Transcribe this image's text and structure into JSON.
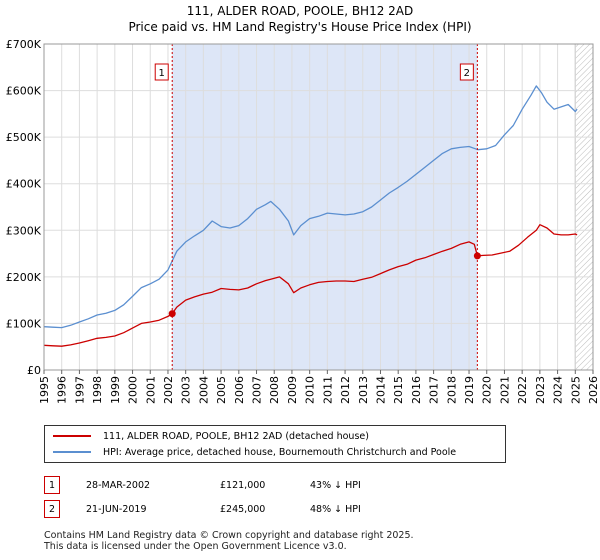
{
  "chart_data": {
    "type": "line",
    "title": "111, ALDER ROAD, POOLE, BH12 2AD",
    "subtitle": "Price paid vs. HM Land Registry's House Price Index (HPI)",
    "xlim": [
      1995,
      2026
    ],
    "ylim": [
      0,
      700000
    ],
    "x_ticks": [
      "1995",
      "1996",
      "1997",
      "1998",
      "1999",
      "2000",
      "2001",
      "2002",
      "2003",
      "2004",
      "2005",
      "2006",
      "2007",
      "2008",
      "2009",
      "2010",
      "2011",
      "2012",
      "2013",
      "2014",
      "2015",
      "2016",
      "2017",
      "2018",
      "2019",
      "2020",
      "2021",
      "2022",
      "2023",
      "2024",
      "2025",
      "2026"
    ],
    "y_ticks": [
      {
        "value": 0,
        "label": "£0"
      },
      {
        "value": 100000,
        "label": "£100K"
      },
      {
        "value": 200000,
        "label": "£200K"
      },
      {
        "value": 300000,
        "label": "£300K"
      },
      {
        "value": 400000,
        "label": "£400K"
      },
      {
        "value": 500000,
        "label": "£500K"
      },
      {
        "value": 600000,
        "label": "£600K"
      },
      {
        "value": 700000,
        "label": "£700K"
      }
    ],
    "shaded_periods": [
      {
        "from": 2002.24,
        "to": 2019.47,
        "color": "#dde6f7"
      }
    ],
    "hatched_region": {
      "from": 2025.0,
      "to": 2026
    },
    "markers": [
      {
        "label": "1",
        "x": 2002.24,
        "y": 121000
      },
      {
        "label": "2",
        "x": 2019.47,
        "y": 245000
      }
    ],
    "series": [
      {
        "name": "111, ALDER ROAD, POOLE, BH12 2AD (detached house)",
        "color": "#cc0000",
        "x": [
          1995,
          1995.5,
          1996,
          1996.5,
          1997,
          1997.5,
          1998,
          1998.5,
          1999,
          1999.5,
          2000,
          2000.5,
          2001,
          2001.5,
          2002,
          2002.24,
          2002.5,
          2003,
          2003.5,
          2004,
          2004.5,
          2005,
          2005.5,
          2006,
          2006.5,
          2007,
          2007.5,
          2007.8,
          2008.3,
          2008.8,
          2009.1,
          2009.5,
          2010,
          2010.5,
          2011,
          2011.5,
          2012,
          2012.5,
          2013,
          2013.5,
          2014,
          2014.5,
          2015,
          2015.5,
          2016,
          2016.5,
          2017,
          2017.5,
          2018,
          2018.5,
          2019,
          2019.3,
          2019.47,
          2019.8,
          2020.3,
          2020.8,
          2021.3,
          2021.8,
          2022.3,
          2022.8,
          2023.0,
          2023.4,
          2023.8,
          2024.2,
          2024.6,
          2025.0,
          2025.1
        ],
        "values": [
          53000,
          52000,
          51000,
          54000,
          58000,
          63000,
          68000,
          70000,
          73000,
          80000,
          90000,
          100000,
          103000,
          107000,
          115000,
          121000,
          135000,
          150000,
          157000,
          163000,
          167000,
          175000,
          173000,
          172000,
          176000,
          185000,
          192000,
          195000,
          200000,
          185000,
          166000,
          176000,
          183000,
          188000,
          190000,
          191000,
          191000,
          190000,
          195000,
          199000,
          207000,
          215000,
          222000,
          227000,
          236000,
          241000,
          248000,
          255000,
          261000,
          270000,
          275000,
          270000,
          245000,
          246000,
          247000,
          251000,
          255000,
          268000,
          285000,
          300000,
          312000,
          305000,
          292000,
          290000,
          290000,
          292000,
          290000
        ]
      },
      {
        "name": "HPI: Average price, detached house, Bournemouth Christchurch and Poole",
        "color": "#5b8fd0",
        "x": [
          1995,
          1995.5,
          1996,
          1996.5,
          1997,
          1997.5,
          1998,
          1998.5,
          1999,
          1999.5,
          2000,
          2000.5,
          2001,
          2001.5,
          2002,
          2002.5,
          2003,
          2003.5,
          2004,
          2004.5,
          2005,
          2005.5,
          2006,
          2006.5,
          2007,
          2007.5,
          2007.8,
          2008.3,
          2008.8,
          2009.1,
          2009.5,
          2010,
          2010.5,
          2011,
          2011.5,
          2012,
          2012.5,
          2013,
          2013.5,
          2014,
          2014.5,
          2015,
          2015.5,
          2016,
          2016.5,
          2017,
          2017.5,
          2018,
          2018.5,
          2019,
          2019.5,
          2020,
          2020.5,
          2021,
          2021.5,
          2022,
          2022.5,
          2022.8,
          2023.1,
          2023.4,
          2023.8,
          2024.2,
          2024.6,
          2025.0,
          2025.1
        ],
        "values": [
          93000,
          92000,
          91000,
          96000,
          103000,
          110000,
          118000,
          122000,
          128000,
          140000,
          158000,
          177000,
          185000,
          195000,
          215000,
          255000,
          275000,
          288000,
          300000,
          320000,
          308000,
          305000,
          310000,
          325000,
          345000,
          355000,
          362000,
          345000,
          320000,
          290000,
          310000,
          325000,
          330000,
          337000,
          335000,
          333000,
          335000,
          340000,
          350000,
          365000,
          380000,
          392000,
          405000,
          420000,
          435000,
          450000,
          465000,
          475000,
          478000,
          480000,
          473000,
          475000,
          482000,
          505000,
          525000,
          560000,
          590000,
          610000,
          595000,
          575000,
          560000,
          565000,
          570000,
          555000,
          560000
        ]
      }
    ]
  },
  "legend": {
    "items": [
      {
        "label": "111, ALDER ROAD, POOLE, BH12 2AD (detached house)",
        "color": "#cc0000"
      },
      {
        "label": "HPI: Average price, detached house, Bournemouth Christchurch and Poole",
        "color": "#5b8fd0"
      }
    ]
  },
  "sales": [
    {
      "num": "1",
      "date": "28-MAR-2002",
      "price": "£121,000",
      "hpi": "43% ↓ HPI"
    },
    {
      "num": "2",
      "date": "21-JUN-2019",
      "price": "£245,000",
      "hpi": "48% ↓ HPI"
    }
  ],
  "footer": {
    "line1": "Contains HM Land Registry data © Crown copyright and database right 2025.",
    "line2": "This data is licensed under the Open Government Licence v3.0."
  }
}
